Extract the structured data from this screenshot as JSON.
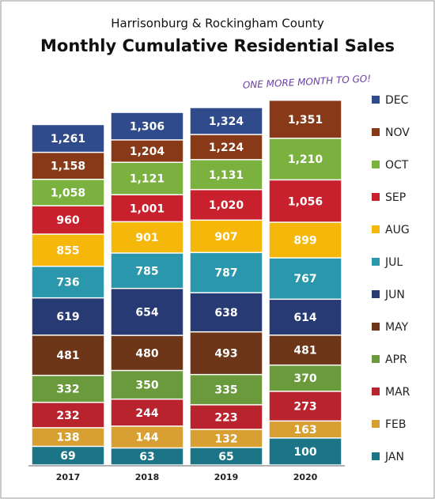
{
  "chart_data": {
    "type": "overlapping-bar",
    "subtitle": "Harrisonburg & Rockingham County",
    "title": "Monthly Cumulative Residential Sales",
    "annotation": "ONE MORE MONTH TO GO!",
    "categories": [
      "2017",
      "2018",
      "2019",
      "2020"
    ],
    "ylim": [
      0,
      1400
    ],
    "series": [
      {
        "name": "JAN",
        "color": "#1b7586",
        "values": [
          69,
          63,
          65,
          100
        ],
        "value_labels": [
          "69",
          "63",
          "65",
          "100"
        ]
      },
      {
        "name": "FEB",
        "color": "#d8a032",
        "values": [
          138,
          144,
          132,
          163
        ],
        "value_labels": [
          "138",
          "144",
          "132",
          "163"
        ]
      },
      {
        "name": "MAR",
        "color": "#b8232e",
        "values": [
          232,
          244,
          223,
          273
        ],
        "value_labels": [
          "232",
          "244",
          "223",
          "273"
        ]
      },
      {
        "name": "APR",
        "color": "#6a9a3c",
        "values": [
          332,
          350,
          335,
          370
        ],
        "value_labels": [
          "332",
          "350",
          "335",
          "370"
        ]
      },
      {
        "name": "MAY",
        "color": "#6e3618",
        "values": [
          481,
          480,
          493,
          481
        ],
        "value_labels": [
          "481",
          "480",
          "493",
          "481"
        ]
      },
      {
        "name": "JUN",
        "color": "#283a74",
        "values": [
          619,
          654,
          638,
          614
        ],
        "value_labels": [
          "619",
          "654",
          "638",
          "614"
        ]
      },
      {
        "name": "JUL",
        "color": "#2a97ad",
        "values": [
          736,
          785,
          787,
          767
        ],
        "value_labels": [
          "736",
          "785",
          "787",
          "767"
        ]
      },
      {
        "name": "AUG",
        "color": "#f5b70a",
        "values": [
          855,
          901,
          907,
          899
        ],
        "value_labels": [
          "855",
          "901",
          "907",
          "899"
        ]
      },
      {
        "name": "SEP",
        "color": "#c8202c",
        "values": [
          960,
          1001,
          1020,
          1056
        ],
        "value_labels": [
          "960",
          "1,001",
          "1,020",
          "1,056"
        ]
      },
      {
        "name": "OCT",
        "color": "#7bb13f",
        "values": [
          1058,
          1121,
          1131,
          1210
        ],
        "value_labels": [
          "1,058",
          "1,121",
          "1,131",
          "1,210"
        ]
      },
      {
        "name": "NOV",
        "color": "#883a18",
        "values": [
          1158,
          1204,
          1224,
          1351
        ],
        "value_labels": [
          "1,158",
          "1,204",
          "1,224",
          "1,351"
        ]
      },
      {
        "name": "DEC",
        "color": "#2f4b8c",
        "values": [
          1261,
          1306,
          1324,
          null
        ],
        "value_labels": [
          "1,261",
          "1,306",
          "1,324",
          null
        ]
      }
    ]
  }
}
